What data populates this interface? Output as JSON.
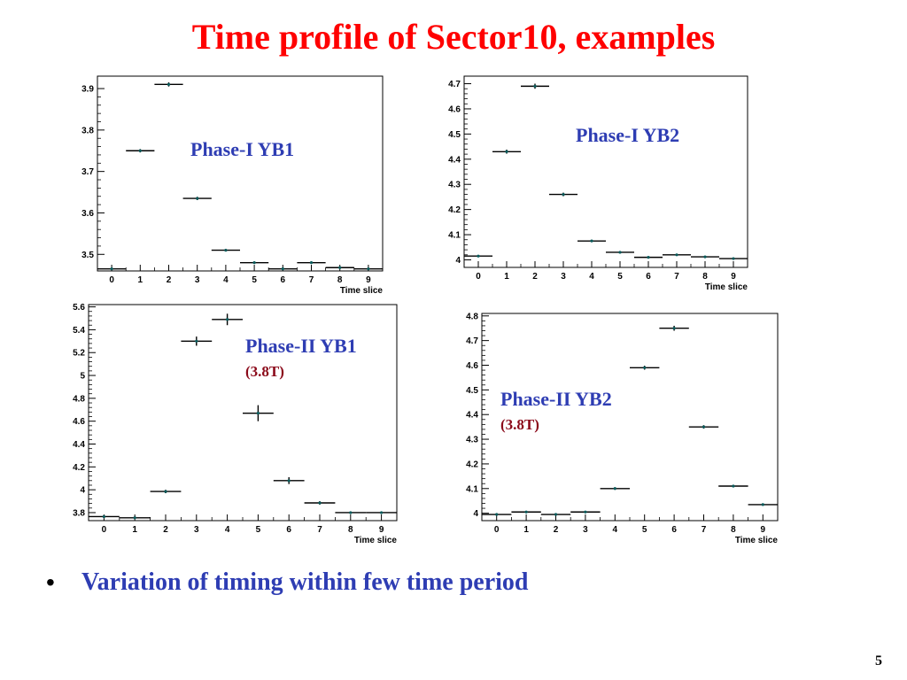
{
  "title": "Time profile of Sector10, examples",
  "bullet": "Variation of timing within few time period",
  "page_number": "5",
  "colors": {
    "title": "#ff0000",
    "label": "#2e3db3",
    "sublabel": "#8b0a1a",
    "marker": "#0a5a5a"
  },
  "chart_data": [
    {
      "type": "scatter",
      "label": "Phase-I YB1",
      "sublabel": "",
      "xlabel": "Time slice",
      "x_ticks": [
        0,
        1,
        2,
        3,
        4,
        5,
        6,
        7,
        8,
        9
      ],
      "y_ticks": [
        3.5,
        3.6,
        3.7,
        3.8,
        3.9
      ],
      "xlim": [
        -0.5,
        9.5
      ],
      "ylim": [
        3.46,
        3.93
      ],
      "x": [
        0,
        1,
        2,
        3,
        4,
        5,
        6,
        7,
        8,
        9
      ],
      "y": [
        3.465,
        3.75,
        3.91,
        3.635,
        3.51,
        3.48,
        3.465,
        3.48,
        3.468,
        3.465
      ],
      "y_err": [
        0.002,
        0.004,
        0.005,
        0.004,
        0.003,
        0.002,
        0.002,
        0.003,
        0.002,
        0.002
      ]
    },
    {
      "type": "scatter",
      "label": "Phase-I YB2",
      "sublabel": "",
      "xlabel": "Time slice",
      "x_ticks": [
        0,
        1,
        2,
        3,
        4,
        5,
        6,
        7,
        8,
        9
      ],
      "y_ticks": [
        4,
        4.1,
        4.2,
        4.3,
        4.4,
        4.5,
        4.6,
        4.7
      ],
      "xlim": [
        -0.5,
        9.5
      ],
      "ylim": [
        3.97,
        4.73
      ],
      "x": [
        0,
        1,
        2,
        3,
        4,
        5,
        6,
        7,
        8,
        9
      ],
      "y": [
        4.015,
        4.43,
        4.69,
        4.26,
        4.075,
        4.03,
        4.01,
        4.02,
        4.012,
        4.005
      ],
      "y_err": [
        0.003,
        0.008,
        0.01,
        0.007,
        0.004,
        0.003,
        0.003,
        0.003,
        0.003,
        0.003
      ]
    },
    {
      "type": "scatter",
      "label": "Phase-II YB1",
      "sublabel": "(3.8T)",
      "xlabel": "Time slice",
      "x_ticks": [
        0,
        1,
        2,
        3,
        4,
        5,
        6,
        7,
        8,
        9
      ],
      "y_ticks": [
        3.8,
        4,
        4.2,
        4.4,
        4.6,
        4.8,
        5,
        5.2,
        5.4,
        5.6
      ],
      "xlim": [
        -0.5,
        9.5
      ],
      "ylim": [
        3.73,
        5.62
      ],
      "x": [
        0,
        1,
        2,
        3,
        4,
        5,
        6,
        7,
        8,
        9
      ],
      "y": [
        3.765,
        3.755,
        3.985,
        5.3,
        5.49,
        4.67,
        4.08,
        3.885,
        3.8,
        3.8
      ],
      "y_err": [
        0.005,
        0.005,
        0.015,
        0.04,
        0.05,
        0.07,
        0.03,
        0.015,
        0.008,
        0.008
      ]
    },
    {
      "type": "scatter",
      "label": "Phase-II YB2",
      "sublabel": "(3.8T)",
      "xlabel": "Time slice",
      "x_ticks": [
        0,
        1,
        2,
        3,
        4,
        5,
        6,
        7,
        8,
        9
      ],
      "y_ticks": [
        4,
        4.1,
        4.2,
        4.3,
        4.4,
        4.5,
        4.6,
        4.7,
        4.8
      ],
      "xlim": [
        -0.5,
        9.5
      ],
      "ylim": [
        3.97,
        4.81
      ],
      "x": [
        0,
        1,
        2,
        3,
        4,
        5,
        6,
        7,
        8,
        9
      ],
      "y": [
        3.995,
        4.005,
        3.995,
        4.005,
        4.1,
        4.59,
        4.75,
        4.35,
        4.11,
        4.035
      ],
      "y_err": [
        0.003,
        0.003,
        0.003,
        0.003,
        0.005,
        0.008,
        0.01,
        0.007,
        0.004,
        0.003
      ]
    }
  ]
}
